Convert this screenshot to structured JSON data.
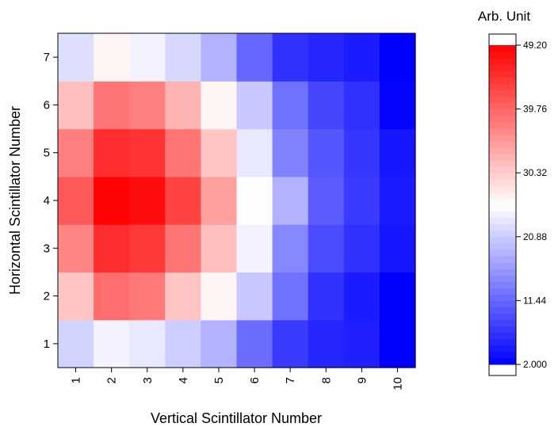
{
  "chart_data": {
    "type": "heatmap",
    "title": "",
    "xlabel": "Vertical Scintillator Number",
    "ylabel": "Horizontal Scintillator Number",
    "x_categories": [
      "1",
      "2",
      "3",
      "4",
      "5",
      "6",
      "7",
      "8",
      "9",
      "10"
    ],
    "y_categories": [
      "1",
      "2",
      "3",
      "4",
      "5",
      "6",
      "7"
    ],
    "values": [
      [
        21.5,
        24.5,
        23.5,
        21.0,
        18.5,
        12.0,
        7.5,
        5.5,
        5.0,
        2.0
      ],
      [
        31.0,
        39.0,
        38.0,
        31.0,
        26.5,
        20.5,
        12.5,
        6.5,
        4.5,
        2.0
      ],
      [
        37.0,
        45.0,
        44.0,
        38.5,
        31.5,
        24.5,
        14.5,
        9.0,
        6.5,
        4.0
      ],
      [
        41.0,
        49.0,
        48.0,
        43.0,
        34.5,
        25.5,
        18.5,
        10.5,
        7.5,
        4.5
      ],
      [
        37.5,
        45.0,
        44.5,
        38.5,
        31.0,
        23.5,
        14.0,
        10.0,
        7.0,
        4.0
      ],
      [
        31.5,
        38.5,
        37.5,
        32.5,
        26.5,
        20.5,
        12.5,
        8.5,
        6.5,
        2.5
      ],
      [
        22.5,
        26.5,
        24.5,
        22.0,
        18.5,
        11.5,
        6.5,
        5.5,
        4.5,
        2.0
      ]
    ],
    "colorbar": {
      "title": "Arb. Unit",
      "min": 2.0,
      "max": 49.2,
      "tick_values": [
        2.0,
        11.44,
        20.88,
        30.32,
        39.76,
        49.2
      ],
      "tick_labels": [
        "2.000",
        "11.44",
        "20.88",
        "30.32",
        "39.76",
        "49.20"
      ],
      "colors": {
        "low": "#0000ff",
        "mid": "#ffffff",
        "high": "#ff0000"
      }
    }
  }
}
